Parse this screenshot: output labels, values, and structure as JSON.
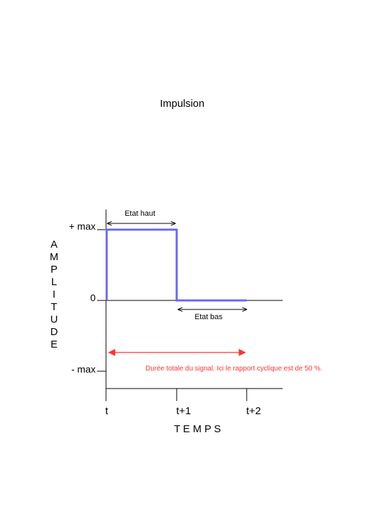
{
  "title": "Impulsion",
  "y_axis": {
    "label_letters": [
      "A",
      "M",
      "P",
      "L",
      "I",
      "T",
      "U",
      "D",
      "E"
    ],
    "ticks": {
      "max": "+ max",
      "zero": "0",
      "min": "- max"
    }
  },
  "x_axis": {
    "label": "T E M P S",
    "ticks": [
      "t",
      "t+1",
      "t+2"
    ]
  },
  "annotations": {
    "high_state": "Etat haut",
    "low_state": "Etat bas",
    "total_duration": "Durée totale du signal. Ici le rapport cyclique est de 50 %."
  },
  "colors": {
    "signal": "#6666ff",
    "duration_arrow": "#ff3333",
    "duration_text": "#ff3333",
    "axis": "#000000"
  },
  "chart_data": {
    "type": "line",
    "description": "square pulse",
    "series": [
      {
        "values_by_time": [
          {
            "t": 0,
            "amplitude": 0
          },
          {
            "t": 0,
            "amplitude": 1
          },
          {
            "t": 1,
            "amplitude": 1
          },
          {
            "t": 1,
            "amplitude": 0
          },
          {
            "t": 2,
            "amplitude": 0
          }
        ]
      }
    ],
    "duty_cycle_percent": 50
  }
}
